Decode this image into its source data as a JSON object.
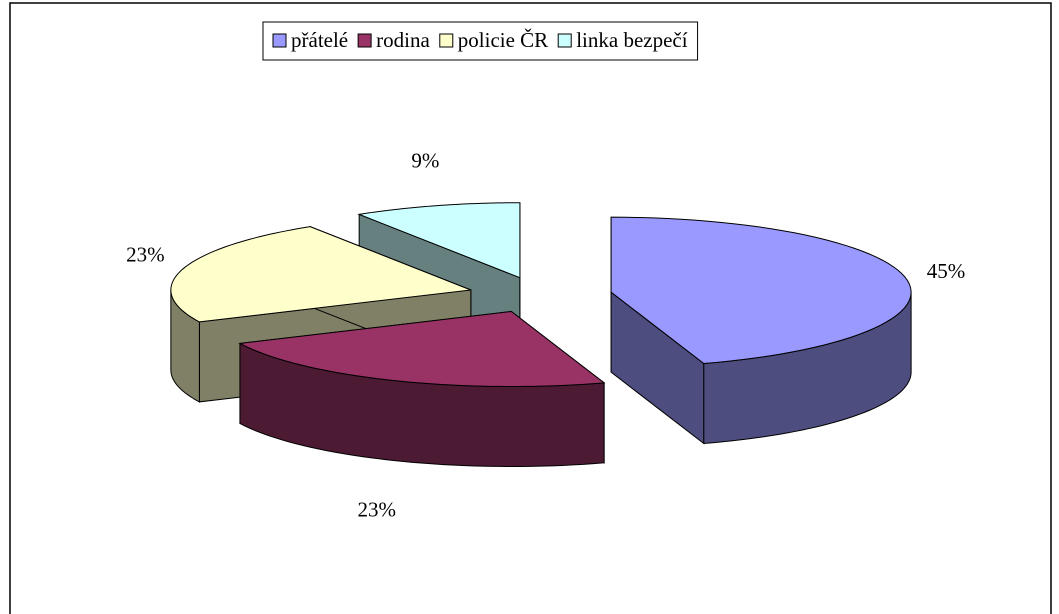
{
  "chart_data": {
    "type": "pie3d",
    "categories": [
      "přátelé",
      "rodina",
      "policie ČR",
      "linka bezpečí"
    ],
    "values": [
      45,
      23,
      23,
      9
    ],
    "value_labels": [
      "45%",
      "23%",
      "23%",
      "9%"
    ],
    "colors": [
      "#9999ff",
      "#993366",
      "#ffffcc",
      "#ccffff"
    ],
    "legend": "top"
  }
}
